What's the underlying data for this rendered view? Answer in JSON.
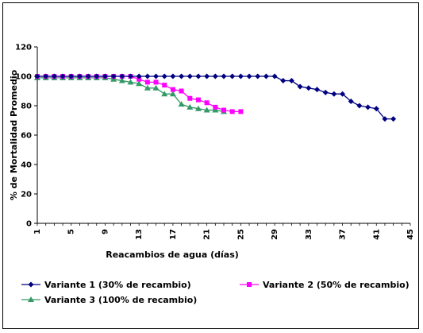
{
  "chart_data": {
    "type": "line",
    "title": "",
    "xlabel": "Reacambios de agua (días)",
    "ylabel": "% de Mortalidad Promedio",
    "ylim": [
      0,
      120
    ],
    "yticks": [
      0,
      20,
      40,
      60,
      80,
      100,
      120
    ],
    "xlim": [
      1,
      45
    ],
    "xtick_labels": [
      "1",
      "5",
      "9",
      "13",
      "17",
      "21",
      "25",
      "29",
      "33",
      "37",
      "41",
      "45"
    ],
    "xtick_values": [
      1,
      5,
      9,
      13,
      17,
      21,
      25,
      29,
      33,
      37,
      41,
      45
    ],
    "grid": false,
    "legend_position": "bottom",
    "series": [
      {
        "name": "Variante 1 (30% de recambio)",
        "color": "#000080",
        "marker": "diamond",
        "x": [
          1,
          2,
          3,
          4,
          5,
          6,
          7,
          8,
          9,
          10,
          11,
          12,
          13,
          14,
          15,
          16,
          17,
          18,
          19,
          20,
          21,
          22,
          23,
          24,
          25,
          26,
          27,
          28,
          29,
          30,
          31,
          32,
          33,
          34,
          35,
          36,
          37,
          38,
          39,
          40,
          41,
          42,
          43
        ],
        "values": [
          100,
          100,
          100,
          100,
          100,
          100,
          100,
          100,
          100,
          100,
          100,
          100,
          100,
          100,
          100,
          100,
          100,
          100,
          100,
          100,
          100,
          100,
          100,
          100,
          100,
          100,
          100,
          100,
          100,
          97,
          97,
          93,
          92,
          91,
          89,
          88,
          88,
          83,
          80,
          79,
          78,
          71,
          71
        ]
      },
      {
        "name": "Variante 2 (50% de recambio)",
        "color": "#FF00FF",
        "marker": "square",
        "x": [
          1,
          2,
          3,
          4,
          5,
          6,
          7,
          8,
          9,
          10,
          11,
          12,
          13,
          14,
          15,
          16,
          17,
          18,
          19,
          20,
          21,
          22,
          23,
          24,
          25
        ],
        "values": [
          100,
          100,
          100,
          100,
          100,
          100,
          100,
          100,
          100,
          100,
          100,
          100,
          98,
          96,
          96,
          94,
          91,
          90,
          85,
          84,
          82,
          79,
          77,
          76,
          76
        ]
      },
      {
        "name": "Variante 3 (100% de recambio)",
        "color": "#339966",
        "marker": "triangle",
        "x": [
          1,
          2,
          3,
          4,
          5,
          6,
          7,
          8,
          9,
          10,
          11,
          12,
          13,
          14,
          15,
          16,
          17,
          18,
          19,
          20,
          21,
          22,
          23
        ],
        "values": [
          99,
          99,
          99,
          99,
          99,
          99,
          99,
          99,
          99,
          98,
          97,
          96,
          95,
          92,
          92,
          88,
          88,
          81,
          79,
          78,
          77,
          77,
          76
        ]
      }
    ]
  }
}
